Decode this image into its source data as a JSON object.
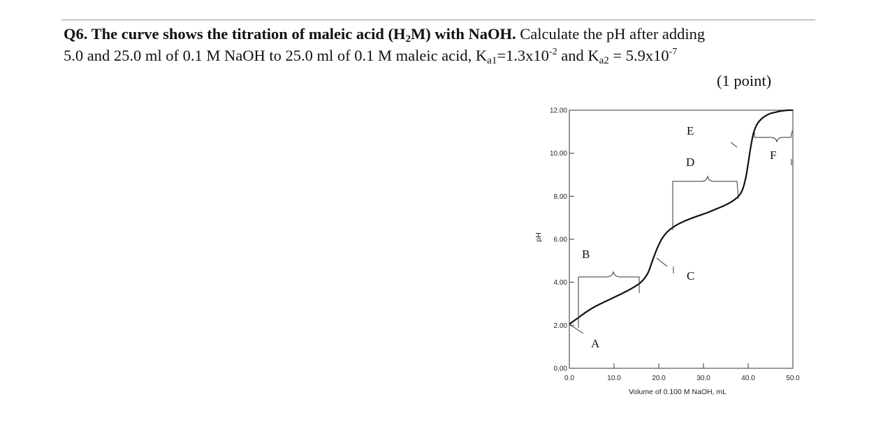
{
  "question": {
    "bold_part": {
      "t1": "Q6. The curve shows the titration of maleic acid (H",
      "sub": "2",
      "t2": "M) with NaOH."
    },
    "line1_rest": " Calculate the pH after adding",
    "line2": {
      "t1": "5.0 and 25.0 ml of 0.1 M NaOH to 25.0 ml of 0.1 M maleic acid, K",
      "ka1_sub": "a1",
      "t2": "=1.3x10",
      "ka1_exp": "-2",
      "t3": " and K",
      "ka2_sub": "a2",
      "t4": " = 5.9x10",
      "ka2_exp": "-7"
    },
    "points": "(1 point)"
  },
  "chart_data": {
    "type": "line",
    "title": "",
    "xlabel": "Volume of 0.100 M NaOH, mL",
    "ylabel": "pH",
    "xlim": [
      0,
      50
    ],
    "ylim": [
      0,
      12
    ],
    "x_ticks": [
      "0.0",
      "10.0",
      "20.0",
      "30.0",
      "40.0",
      "50.0"
    ],
    "y_ticks": [
      "0.00",
      "2.00",
      "4.00",
      "6.00",
      "8.00",
      "10.00",
      "12.00"
    ],
    "series": [
      {
        "x": [
          0,
          2,
          4,
          6,
          8,
          10,
          12,
          14,
          16,
          17.5,
          18.5,
          19.5,
          20.5,
          21.5,
          22.5,
          23.5,
          24.5,
          25.5,
          27,
          29,
          31,
          33,
          35,
          37,
          38.5,
          39.5,
          40.5,
          41.2,
          42,
          43,
          44,
          45,
          46,
          47,
          48,
          49,
          50
        ],
        "y": [
          2.05,
          2.35,
          2.65,
          2.9,
          3.1,
          3.3,
          3.5,
          3.72,
          4.0,
          4.4,
          4.95,
          5.5,
          5.95,
          6.25,
          6.45,
          6.6,
          6.72,
          6.82,
          6.95,
          7.1,
          7.25,
          7.42,
          7.6,
          7.85,
          8.2,
          8.9,
          10.2,
          10.95,
          11.35,
          11.6,
          11.75,
          11.85,
          11.9,
          11.95,
          11.98,
          12.0,
          12.0
        ]
      }
    ],
    "annotations": [
      "A",
      "B",
      "C",
      "D",
      "E",
      "F"
    ],
    "grid": false,
    "line_color": "#111111"
  }
}
